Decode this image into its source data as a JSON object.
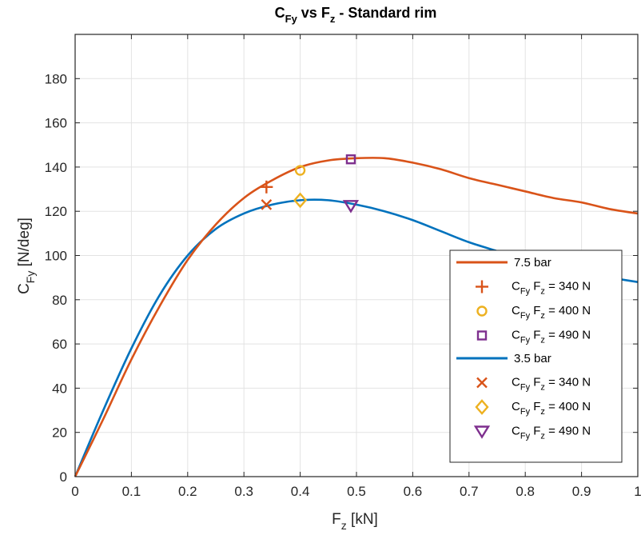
{
  "chart_data": {
    "type": "line",
    "title": {
      "main": "C",
      "sub": "Fy",
      "mid": " vs F",
      "sub2": "z",
      "tail": " - Standard rim"
    },
    "xlabel": {
      "main": "F",
      "sub": "z",
      "tail": " [kN]"
    },
    "ylabel": {
      "main": "C",
      "sub": "Fy",
      "tail": " [N/deg]"
    },
    "xlim": [
      0,
      1
    ],
    "ylim": [
      0,
      200
    ],
    "xticks": [
      0,
      0.1,
      0.2,
      0.3,
      0.4,
      0.5,
      0.6,
      0.7,
      0.8,
      0.9,
      1
    ],
    "xtick_labels": [
      "0",
      "0.1",
      "0.2",
      "0.3",
      "0.4",
      "0.5",
      "0.6",
      "0.7",
      "0.8",
      "0.9",
      "1"
    ],
    "yticks": [
      0,
      20,
      40,
      60,
      80,
      100,
      120,
      140,
      160,
      180
    ],
    "ytick_labels": [
      "0",
      "20",
      "40",
      "60",
      "80",
      "100",
      "120",
      "140",
      "160",
      "180"
    ],
    "grid": true,
    "legend_position": "bottom-right",
    "series": [
      {
        "name": "7.5 bar",
        "color": "#D95319",
        "x": [
          0,
          0.05,
          0.1,
          0.15,
          0.2,
          0.25,
          0.3,
          0.35,
          0.4,
          0.45,
          0.5,
          0.55,
          0.6,
          0.65,
          0.7,
          0.75,
          0.8,
          0.85,
          0.9,
          0.95,
          1.0
        ],
        "y": [
          0,
          26,
          53,
          77,
          98,
          114,
          126,
          134,
          140,
          143,
          144,
          144,
          142,
          139,
          135,
          132,
          129,
          126,
          124,
          121,
          119
        ],
        "markers": [
          {
            "label_main": "C",
            "label_sub": "Fy",
            "label_mid": " F",
            "label_sub2": "z",
            "label_tail": " = 340 N",
            "x": 0.34,
            "y": 131,
            "shape": "plus",
            "color": "#D95319"
          },
          {
            "label_main": "C",
            "label_sub": "Fy",
            "label_mid": " F",
            "label_sub2": "z",
            "label_tail": " = 400 N",
            "x": 0.4,
            "y": 138.5,
            "shape": "circle",
            "color": "#EDB120"
          },
          {
            "label_main": "C",
            "label_sub": "Fy",
            "label_mid": " F",
            "label_sub2": "z",
            "label_tail": " = 490 N",
            "x": 0.49,
            "y": 143.5,
            "shape": "square",
            "color": "#7E2F8E"
          }
        ]
      },
      {
        "name": "3.5 bar",
        "color": "#0072BD",
        "x": [
          0,
          0.05,
          0.1,
          0.15,
          0.2,
          0.25,
          0.3,
          0.35,
          0.4,
          0.45,
          0.5,
          0.55,
          0.6,
          0.65,
          0.7,
          0.75,
          0.8,
          0.85,
          0.9,
          0.95,
          1.0
        ],
        "y": [
          0,
          30,
          58,
          82,
          100,
          112,
          119,
          123,
          125,
          125,
          123,
          120,
          116,
          111,
          106,
          102,
          98,
          95,
          92,
          90,
          88
        ],
        "markers": [
          {
            "label_main": "C",
            "label_sub": "Fy",
            "label_mid": " F",
            "label_sub2": "z",
            "label_tail": " = 340 N",
            "x": 0.34,
            "y": 123,
            "shape": "x",
            "color": "#D95319"
          },
          {
            "label_main": "C",
            "label_sub": "Fy",
            "label_mid": " F",
            "label_sub2": "z",
            "label_tail": " = 400 N",
            "x": 0.4,
            "y": 125,
            "shape": "diamond",
            "color": "#EDB120"
          },
          {
            "label_main": "C",
            "label_sub": "Fy",
            "label_mid": " F",
            "label_sub2": "z",
            "label_tail": " = 490 N",
            "x": 0.49,
            "y": 122.5,
            "shape": "triangle-down",
            "color": "#7E2F8E"
          }
        ]
      }
    ]
  }
}
